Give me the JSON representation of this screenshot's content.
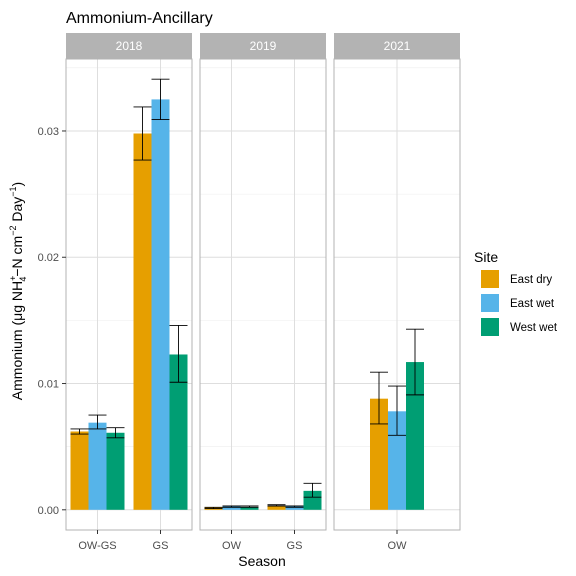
{
  "chart_data": {
    "type": "bar",
    "title": "Ammonium-Ancillary",
    "xlabel": "Season",
    "ylabel": "Ammonium (μg NH₄⁺−N cm⁻² Day⁻¹)",
    "ylim": [
      -0.0016,
      0.0357
    ],
    "yticks": [
      "0.00",
      "0.01",
      "0.02",
      "0.03"
    ],
    "grid": true,
    "legend": {
      "title": "Site",
      "position": "right",
      "entries": [
        "East dry",
        "East wet",
        "West wet"
      ]
    },
    "colors": {
      "East dry": "#E69F00",
      "East wet": "#56B4E9",
      "West wet": "#009E73"
    },
    "error_bars": true,
    "facets": [
      {
        "label": "2018",
        "categories": [
          "OW-GS",
          "GS"
        ],
        "series": [
          {
            "name": "East dry",
            "values": [
              0.0062,
              0.0298
            ],
            "err_low": [
              0.006,
              0.0277
            ],
            "err_high": [
              0.0064,
              0.0319
            ]
          },
          {
            "name": "East wet",
            "values": [
              0.0069,
              0.0325
            ],
            "err_low": [
              0.0064,
              0.0309
            ],
            "err_high": [
              0.0075,
              0.0341
            ]
          },
          {
            "name": "West wet",
            "values": [
              0.0061,
              0.0123
            ],
            "err_low": [
              0.0057,
              0.0101
            ],
            "err_high": [
              0.0065,
              0.0146
            ]
          }
        ]
      },
      {
        "label": "2019",
        "categories": [
          "OW",
          "GS"
        ],
        "series": [
          {
            "name": "East dry",
            "values": [
              0.0002,
              0.0003
            ],
            "err_low": [
              0.0001,
              0.0003
            ],
            "err_high": [
              0.0002,
              0.0004
            ]
          },
          {
            "name": "East wet",
            "values": [
              0.0003,
              0.0003
            ],
            "err_low": [
              0.0002,
              0.0002
            ],
            "err_high": [
              0.0003,
              0.0003
            ]
          },
          {
            "name": "West wet",
            "values": [
              0.0002,
              0.0015
            ],
            "err_low": [
              0.0002,
              0.001
            ],
            "err_high": [
              0.0003,
              0.0021
            ]
          }
        ]
      },
      {
        "label": "2021",
        "categories": [
          "OW"
        ],
        "series": [
          {
            "name": "East dry",
            "values": [
              0.0088
            ],
            "err_low": [
              0.0068
            ],
            "err_high": [
              0.0109
            ]
          },
          {
            "name": "East wet",
            "values": [
              0.0078
            ],
            "err_low": [
              0.0059
            ],
            "err_high": [
              0.0098
            ]
          },
          {
            "name": "West wet",
            "values": [
              0.0117
            ],
            "err_low": [
              0.0091
            ],
            "err_high": [
              0.0143
            ]
          }
        ]
      }
    ]
  }
}
